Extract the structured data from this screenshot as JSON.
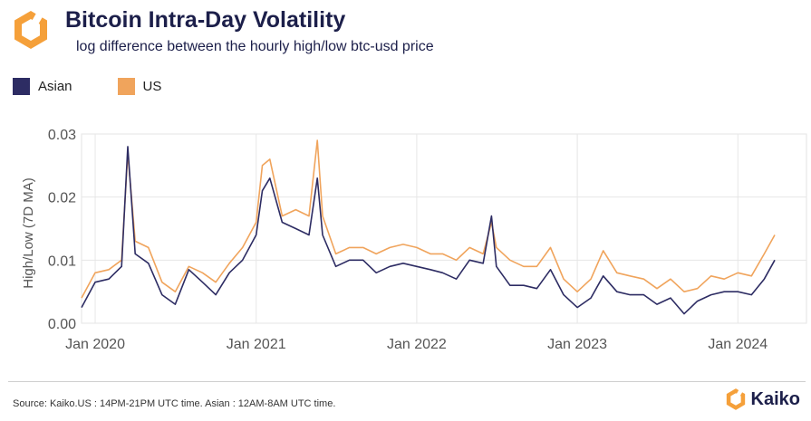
{
  "header": {
    "title": "Bitcoin Intra-Day Volatility",
    "subtitle": "log difference between the hourly high/low btc-usd price"
  },
  "footer": {
    "source": "Source: Kaiko.US : 14PM-21PM UTC time. Asian : 12AM-8AM UTC time.",
    "brand": "Kaiko"
  },
  "colors": {
    "asian": "#2d2c63",
    "us": "#f0a45c",
    "brand_orange": "#f5a03a",
    "grid": "#e6e6e6",
    "title": "#1c1f4a"
  },
  "icons": {
    "logo": "kaiko-hexagon-logo-icon"
  },
  "chart_data": {
    "type": "line",
    "title": "Bitcoin Intra-Day Volatility",
    "subtitle": "log difference between the hourly high/low btc-usd price",
    "xlabel": "",
    "ylabel": "High/Low (7D MA)",
    "ylim": [
      0.0,
      0.03
    ],
    "xlim": [
      "2019-12-01",
      "2024-06-05"
    ],
    "yticks": [
      0.0,
      0.01,
      0.02,
      0.03
    ],
    "ytick_labels": [
      "0.00",
      "0.01",
      "0.02",
      "0.03"
    ],
    "xtick_labels": [
      "Jan 2020",
      "Jan 2021",
      "Jan 2022",
      "Jan 2023",
      "Jan 2024"
    ],
    "xtick_dates": [
      "2020-01-01",
      "2021-01-01",
      "2022-01-01",
      "2023-01-01",
      "2024-01-01"
    ],
    "grid": true,
    "legend_position": "top-left",
    "x": [
      "2019-12-01",
      "2020-01-01",
      "2020-02-01",
      "2020-03-01",
      "2020-03-15",
      "2020-04-01",
      "2020-05-01",
      "2020-06-01",
      "2020-07-01",
      "2020-08-01",
      "2020-09-01",
      "2020-10-01",
      "2020-11-01",
      "2020-12-01",
      "2021-01-01",
      "2021-01-15",
      "2021-02-01",
      "2021-03-01",
      "2021-04-01",
      "2021-05-01",
      "2021-05-20",
      "2021-06-01",
      "2021-07-01",
      "2021-08-01",
      "2021-09-01",
      "2021-10-01",
      "2021-11-01",
      "2021-12-01",
      "2022-01-01",
      "2022-02-01",
      "2022-03-01",
      "2022-04-01",
      "2022-05-01",
      "2022-06-01",
      "2022-06-20",
      "2022-07-01",
      "2022-08-01",
      "2022-09-01",
      "2022-10-01",
      "2022-11-01",
      "2022-12-01",
      "2023-01-01",
      "2023-02-01",
      "2023-03-01",
      "2023-04-01",
      "2023-05-01",
      "2023-06-01",
      "2023-07-01",
      "2023-08-01",
      "2023-09-01",
      "2023-10-01",
      "2023-11-01",
      "2023-12-01",
      "2024-01-01",
      "2024-02-01",
      "2024-03-01",
      "2024-03-25"
    ],
    "series": [
      {
        "name": "Asian",
        "color": "#2d2c63",
        "values": [
          0.0025,
          0.0065,
          0.007,
          0.009,
          0.028,
          0.011,
          0.0095,
          0.0045,
          0.003,
          0.0085,
          0.0065,
          0.0045,
          0.008,
          0.01,
          0.014,
          0.021,
          0.023,
          0.016,
          0.015,
          0.014,
          0.023,
          0.014,
          0.009,
          0.01,
          0.01,
          0.008,
          0.009,
          0.0095,
          0.009,
          0.0085,
          0.008,
          0.007,
          0.01,
          0.0095,
          0.017,
          0.009,
          0.006,
          0.006,
          0.0055,
          0.0085,
          0.0045,
          0.0025,
          0.004,
          0.0075,
          0.005,
          0.0045,
          0.0045,
          0.003,
          0.004,
          0.0015,
          0.0035,
          0.0045,
          0.005,
          0.005,
          0.0045,
          0.007,
          0.01
        ]
      },
      {
        "name": "US",
        "color": "#f0a45c",
        "values": [
          0.004,
          0.008,
          0.0085,
          0.01,
          0.027,
          0.013,
          0.012,
          0.0065,
          0.005,
          0.009,
          0.008,
          0.0065,
          0.0095,
          0.012,
          0.016,
          0.025,
          0.026,
          0.017,
          0.018,
          0.017,
          0.029,
          0.017,
          0.011,
          0.012,
          0.012,
          0.011,
          0.012,
          0.0125,
          0.012,
          0.011,
          0.011,
          0.01,
          0.012,
          0.011,
          0.016,
          0.012,
          0.01,
          0.009,
          0.009,
          0.012,
          0.007,
          0.005,
          0.007,
          0.0115,
          0.008,
          0.0075,
          0.007,
          0.0055,
          0.007,
          0.005,
          0.0055,
          0.0075,
          0.007,
          0.008,
          0.0075,
          0.011,
          0.014
        ]
      }
    ]
  }
}
